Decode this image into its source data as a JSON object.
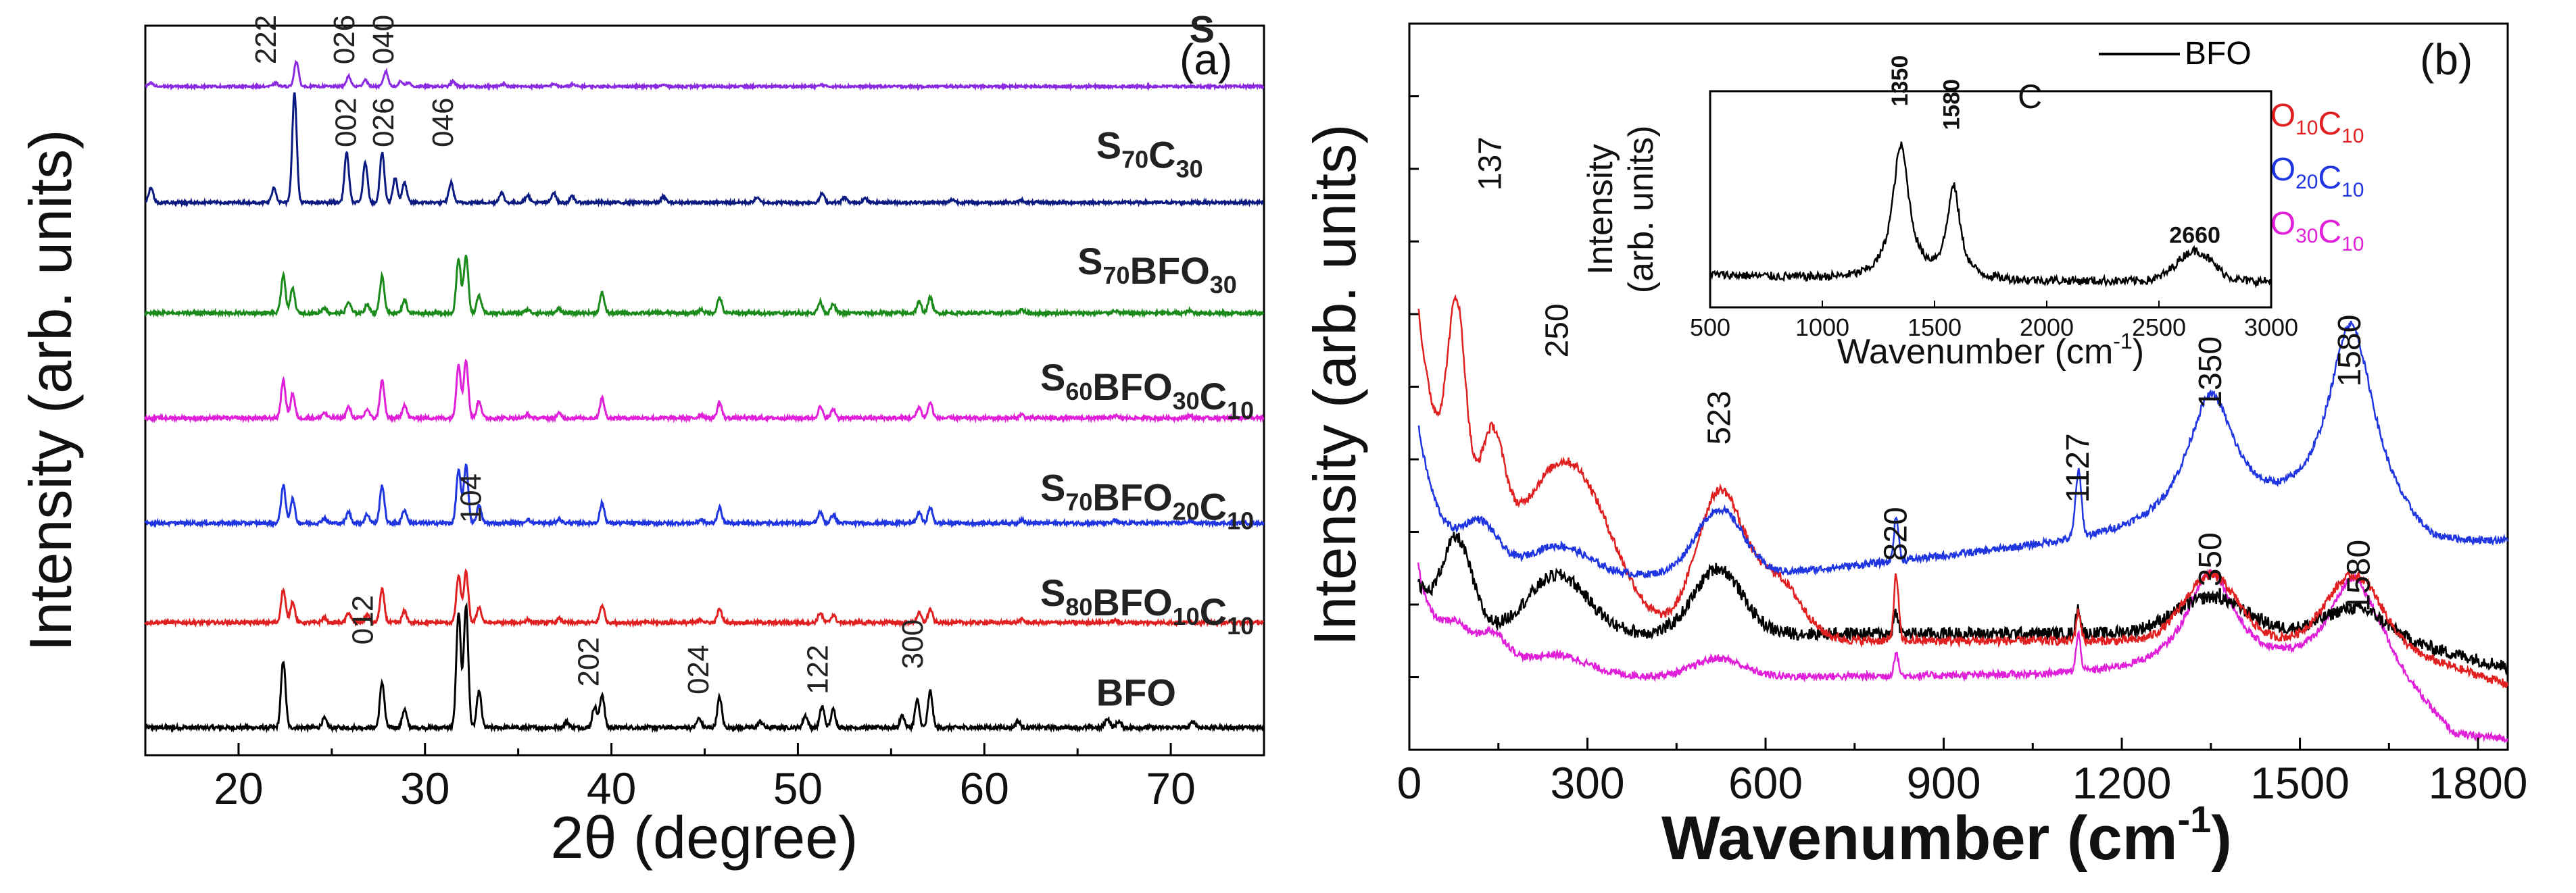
{
  "chart_data": [
    {
      "type": "line",
      "panel_label": "(a)",
      "xlabel": "2θ (degree)",
      "ylabel": "Intensity (arb. units)",
      "xlim": [
        15,
        75
      ],
      "xticks": [
        20,
        30,
        40,
        50,
        60,
        70
      ],
      "ylim": [
        0,
        6.6
      ],
      "baseline_offsets": [
        0.25,
        1.2,
        2.1,
        3.05,
        4.0,
        5.0,
        6.05
      ],
      "series": [
        {
          "name": "BFO",
          "sub": [],
          "color": "#000000",
          "text_color": "#222222",
          "label_at": [
            66,
            0.45
          ],
          "peak_scale": 1.1,
          "noise": 0.035
        },
        {
          "name": "S80BFO10C10",
          "sub": [
            "80",
            "10",
            "10"
          ],
          "color": "#e02020",
          "text_color": "#222222",
          "label_at": [
            63,
            1.35
          ],
          "peak_scale": 0.7,
          "noise": 0.03
        },
        {
          "name": "S70BFO20C10",
          "sub": [
            "70",
            "20",
            "10"
          ],
          "color": "#1f35e0",
          "text_color": "#222222",
          "label_at": [
            63,
            2.3
          ],
          "peak_scale": 0.8,
          "noise": 0.03
        },
        {
          "name": "S60BFO30C10",
          "sub": [
            "60",
            "30",
            "10"
          ],
          "color": "#e020d8",
          "text_color": "#222222",
          "label_at": [
            63,
            3.3
          ],
          "peak_scale": 0.8,
          "noise": 0.03
        },
        {
          "name": "S70BFO30",
          "sub": [
            "70",
            "30"
          ],
          "color": "#1a8a1a",
          "text_color": "#222222",
          "label_at": [
            65,
            4.35
          ],
          "peak_scale": 0.8,
          "noise": 0.03
        },
        {
          "name": "S70C30",
          "sub": [
            "70",
            "30"
          ],
          "color": "#0a1a80",
          "text_color": "#222222",
          "label_at": [
            66,
            5.4
          ],
          "peak_scale": 0.9,
          "noise": 0.025
        },
        {
          "name": "S",
          "sub": [],
          "color": "#8a2be2",
          "text_color": "#222222",
          "label_at": [
            71,
            6.45
          ],
          "peak_scale": 0.6,
          "noise": 0.02
        }
      ],
      "peaks_bfo": [
        [
          22.4,
          1.1
        ],
        [
          24.6,
          0.15
        ],
        [
          27.7,
          0.75
        ],
        [
          28.9,
          0.3
        ],
        [
          31.8,
          1.9
        ],
        [
          32.2,
          2.0
        ],
        [
          32.9,
          0.6
        ],
        [
          37.6,
          0.1
        ],
        [
          39.1,
          0.35
        ],
        [
          39.5,
          0.55
        ],
        [
          44.7,
          0.15
        ],
        [
          45.8,
          0.5
        ],
        [
          48.0,
          0.1
        ],
        [
          50.4,
          0.2
        ],
        [
          51.3,
          0.35
        ],
        [
          51.9,
          0.3
        ],
        [
          55.6,
          0.2
        ],
        [
          56.4,
          0.45
        ],
        [
          57.1,
          0.6
        ],
        [
          61.8,
          0.1
        ],
        [
          66.6,
          0.15
        ],
        [
          67.2,
          0.1
        ],
        [
          71.2,
          0.1
        ]
      ],
      "peaks_composite": [
        [
          22.4,
          0.85
        ],
        [
          22.9,
          0.55
        ],
        [
          24.6,
          0.12
        ],
        [
          25.9,
          0.25
        ],
        [
          26.9,
          0.2
        ],
        [
          27.7,
          0.85
        ],
        [
          28.9,
          0.3
        ],
        [
          31.8,
          1.2
        ],
        [
          32.2,
          1.3
        ],
        [
          32.9,
          0.4
        ],
        [
          35.5,
          0.08
        ],
        [
          37.2,
          0.1
        ],
        [
          39.5,
          0.45
        ],
        [
          44.8,
          0.08
        ],
        [
          45.8,
          0.35
        ],
        [
          51.2,
          0.25
        ],
        [
          51.9,
          0.2
        ],
        [
          56.5,
          0.25
        ],
        [
          57.1,
          0.35
        ],
        [
          62.0,
          0.08
        ],
        [
          67.0,
          0.06
        ],
        [
          71.0,
          0.05
        ]
      ],
      "peaks_s70c30": [
        [
          15.3,
          0.3
        ],
        [
          21.9,
          0.3
        ],
        [
          23.0,
          2.2
        ],
        [
          25.8,
          1.0
        ],
        [
          26.8,
          0.8
        ],
        [
          27.7,
          1.0
        ],
        [
          28.4,
          0.5
        ],
        [
          28.9,
          0.4
        ],
        [
          31.4,
          0.4
        ],
        [
          34.1,
          0.2
        ],
        [
          35.5,
          0.15
        ],
        [
          36.9,
          0.2
        ],
        [
          37.9,
          0.12
        ],
        [
          42.8,
          0.12
        ],
        [
          47.8,
          0.1
        ],
        [
          51.3,
          0.18
        ],
        [
          52.5,
          0.1
        ],
        [
          53.6,
          0.08
        ],
        [
          58.3,
          0.06
        ],
        [
          62.0,
          0.05
        ]
      ],
      "peaks_s": [
        [
          15.3,
          0.1
        ],
        [
          22.0,
          0.1
        ],
        [
          23.1,
          0.75
        ],
        [
          25.9,
          0.3
        ],
        [
          26.8,
          0.2
        ],
        [
          27.9,
          0.45
        ],
        [
          28.7,
          0.15
        ],
        [
          29.1,
          0.12
        ],
        [
          31.5,
          0.15
        ],
        [
          34.2,
          0.08
        ],
        [
          36.9,
          0.08
        ],
        [
          37.9,
          0.06
        ],
        [
          42.8,
          0.05
        ],
        [
          51.3,
          0.05
        ]
      ],
      "annotations": [
        {
          "text": "222",
          "x": 22.0,
          "y": 6.25
        },
        {
          "text": "026",
          "x": 26.2,
          "y": 6.25
        },
        {
          "text": "040",
          "x": 28.3,
          "y": 6.25
        },
        {
          "text": "002",
          "x": 26.3,
          "y": 5.5
        },
        {
          "text": "026",
          "x": 28.3,
          "y": 5.5
        },
        {
          "text": "046",
          "x": 31.5,
          "y": 5.5
        },
        {
          "text": "012",
          "x": 27.2,
          "y": 1.0
        },
        {
          "text": "104",
          "x": 33.0,
          "y": 2.1
        },
        {
          "text": "202",
          "x": 39.3,
          "y": 0.62
        },
        {
          "text": "024",
          "x": 45.2,
          "y": 0.55
        },
        {
          "text": "122",
          "x": 51.6,
          "y": 0.55
        },
        {
          "text": "300",
          "x": 56.7,
          "y": 0.78
        }
      ]
    },
    {
      "type": "line",
      "panel_label": "(b)",
      "xlabel": "Wavenumber (cm",
      "xlabel_sup": "-1",
      "xlabel_close": ")",
      "ylabel": "Intensity (arb. units)",
      "xlim": [
        0,
        1850
      ],
      "xticks": [
        0,
        300,
        600,
        900,
        1200,
        1500,
        1800
      ],
      "ylim": [
        0,
        10
      ],
      "legend_position": "top-right",
      "series": [
        {
          "name": "BFO",
          "sub": [],
          "color": "#000000"
        },
        {
          "name": "S80BFO10C10",
          "sub": [
            "80",
            "10",
            "10"
          ],
          "color": "#e02020"
        },
        {
          "name": "S70BFO20C10",
          "sub": [
            "70",
            "20",
            "10"
          ],
          "color": "#1f35e0"
        },
        {
          "name": "S60BFO30C10",
          "sub": [
            "60",
            "30",
            "10"
          ],
          "color": "#e020d8"
        }
      ],
      "annotations": [
        {
          "text": "137",
          "x": 137,
          "y": 7.7
        },
        {
          "text": "250",
          "x": 250,
          "y": 5.4
        },
        {
          "text": "523",
          "x": 523,
          "y": 4.2
        },
        {
          "text": "820",
          "x": 820,
          "y": 2.6
        },
        {
          "text": "1127",
          "x": 1127,
          "y": 3.4
        },
        {
          "text": "1350",
          "x": 1350,
          "y": 4.7
        },
        {
          "text": "1580",
          "x": 1585,
          "y": 5.0
        },
        {
          "text": "1350",
          "x": 1350,
          "y": 2.0
        },
        {
          "text": "1580",
          "x": 1600,
          "y": 1.9
        }
      ],
      "inset": {
        "label": "C",
        "xlabel": "Wavenumber (cm",
        "xlabel_sup": "-1",
        "xlabel_close": ")",
        "ylabel": "Intensity",
        "ylabel2": "(arb. units)",
        "xlim": [
          500,
          3000
        ],
        "xticks": [
          500,
          1000,
          1500,
          2000,
          2500,
          3000
        ],
        "peaks": [
          {
            "x": 1350,
            "label": "1350"
          },
          {
            "x": 1580,
            "label": "1580"
          },
          {
            "x": 2660,
            "label": "2660"
          }
        ]
      }
    }
  ]
}
